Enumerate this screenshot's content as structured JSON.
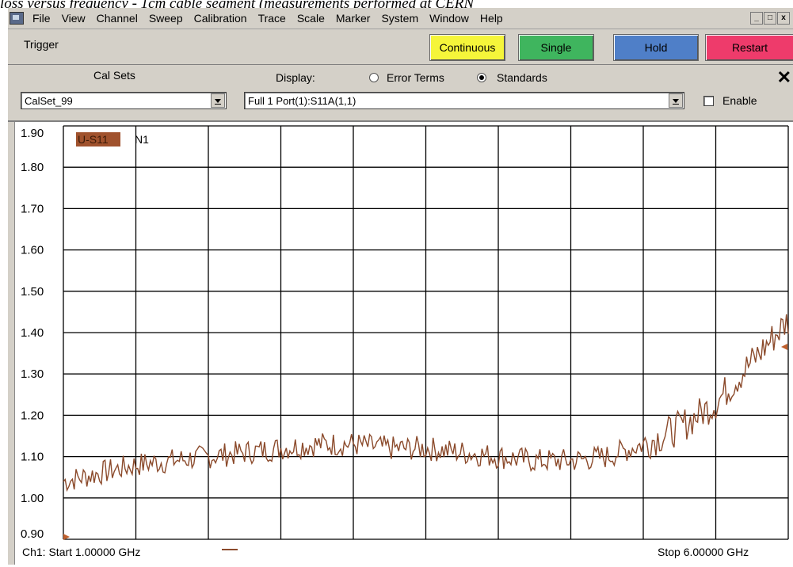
{
  "caption": "loss versus frequency - 1cm cable segment (measurements performed at CERN",
  "menu": {
    "items": [
      "File",
      "View",
      "Channel",
      "Sweep",
      "Calibration",
      "Trace",
      "Scale",
      "Marker",
      "System",
      "Window",
      "Help"
    ],
    "window_controls": [
      "_",
      "×",
      "x"
    ]
  },
  "trigger": {
    "label": "Trigger",
    "continuous": "Continuous",
    "single": "Single",
    "hold": "Hold",
    "restart": "Restart"
  },
  "cal": {
    "calsets_label": "Cal Sets",
    "calset_value": "CalSet_99",
    "display_label": "Display:",
    "error_terms": "Error Terms",
    "standards": "Standards",
    "selected": "Standards",
    "display_value": "Full 1 Port(1):S11A(1,1)",
    "enable_label": "Enable",
    "enable_checked": false
  },
  "chart_data": {
    "type": "line",
    "trace_label": "U-S11",
    "marker_label": "N1",
    "ylim": [
      0.9,
      1.9
    ],
    "ytick_labels": [
      "1.90",
      "1.80",
      "1.70",
      "1.60",
      "1.50",
      "1.40",
      "1.30",
      "1.20",
      "1.10",
      "1.00",
      "0.90"
    ],
    "xlim": [
      1.0,
      6.0
    ],
    "x_divisions": 10,
    "start_label": "Ch1: Start  1.00000 GHz",
    "stop_label": "Stop  6.00000 GHz",
    "grid": true,
    "colors": {
      "trace": "#8b4a2b",
      "trace_label_bg": "#a0522d",
      "grid": "#000000"
    },
    "series": [
      {
        "x": [
          1.0,
          1.25,
          1.5,
          1.75,
          2.0,
          2.25,
          2.5,
          2.75,
          3.0,
          3.25,
          3.5,
          3.75,
          4.0,
          4.25,
          4.5,
          4.75,
          5.0,
          5.25,
          5.5,
          5.75,
          6.0
        ],
        "values": [
          1.04,
          1.06,
          1.08,
          1.09,
          1.1,
          1.11,
          1.12,
          1.13,
          1.13,
          1.12,
          1.12,
          1.11,
          1.1,
          1.09,
          1.09,
          1.1,
          1.13,
          1.17,
          1.23,
          1.33,
          1.43
        ]
      }
    ]
  }
}
